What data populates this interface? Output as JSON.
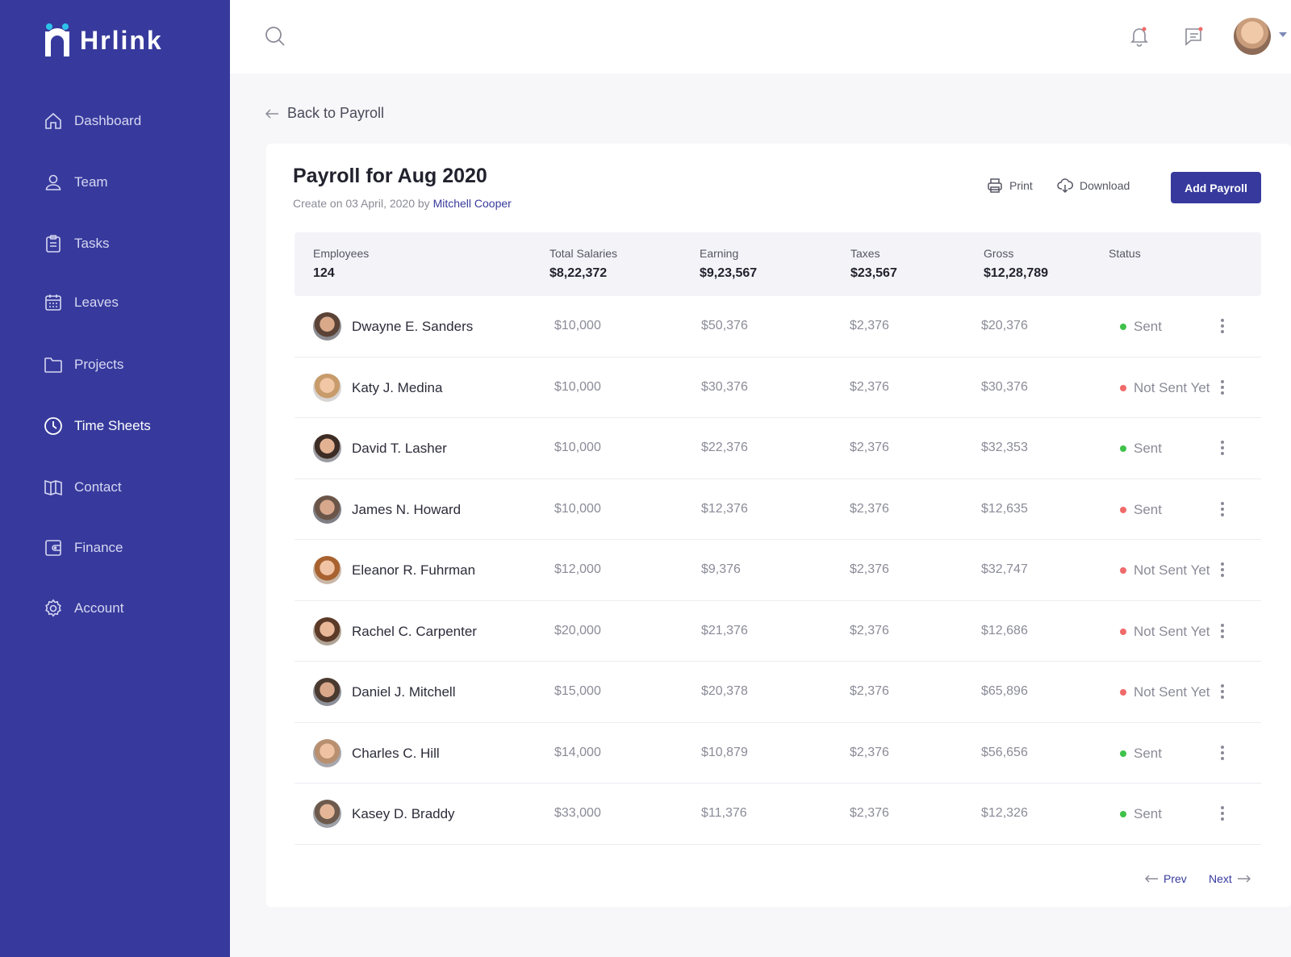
{
  "app": {
    "name": "Hrlink"
  },
  "sidebar": {
    "items": [
      {
        "label": "Dashboard",
        "icon": "home-icon"
      },
      {
        "label": "Team",
        "icon": "user-icon"
      },
      {
        "label": "Tasks",
        "icon": "clipboard-icon"
      },
      {
        "label": "Leaves",
        "icon": "calendar-icon"
      },
      {
        "label": "Projects",
        "icon": "folder-icon"
      },
      {
        "label": "Time Sheets",
        "icon": "clock-icon",
        "active": true
      },
      {
        "label": "Contact",
        "icon": "book-icon"
      },
      {
        "label": "Finance",
        "icon": "wallet-icon"
      },
      {
        "label": "Account",
        "icon": "gear-icon"
      }
    ]
  },
  "back": {
    "label": "Back to Payroll"
  },
  "page": {
    "title": "Payroll for Aug 2020",
    "created_prefix": "Create on 03 April, 2020 by",
    "created_by": "Mitchell Cooper"
  },
  "actions": {
    "print": "Print",
    "download": "Download",
    "add": "Add Payroll"
  },
  "summary": [
    {
      "label": "Employees",
      "value": "124"
    },
    {
      "label": "Total Salaries",
      "value": "$8,22,372"
    },
    {
      "label": "Earning",
      "value": "$9,23,567"
    },
    {
      "label": "Taxes",
      "value": "$23,567"
    },
    {
      "label": "Gross",
      "value": "$12,28,789"
    },
    {
      "label": "Status",
      "value": ""
    }
  ],
  "rows": [
    {
      "name": "Dwayne E. Sanders",
      "salary": "$10,000",
      "earning": "$50,376",
      "taxes": "$2,376",
      "gross": "$20,376",
      "status": "Sent",
      "status_color": "#3fc24a"
    },
    {
      "name": "Katy J. Medina",
      "salary": "$10,000",
      "earning": "$30,376",
      "taxes": "$2,376",
      "gross": "$30,376",
      "status": "Not Sent Yet",
      "status_color": "#f06a6a"
    },
    {
      "name": "David T. Lasher",
      "salary": "$10,000",
      "earning": "$22,376",
      "taxes": "$2,376",
      "gross": "$32,353",
      "status": "Sent",
      "status_color": "#3fc24a"
    },
    {
      "name": "James N. Howard",
      "salary": "$10,000",
      "earning": "$12,376",
      "taxes": "$2,376",
      "gross": "$12,635",
      "status": "Sent",
      "status_color": "#f06a6a"
    },
    {
      "name": "Eleanor R. Fuhrman",
      "salary": "$12,000",
      "earning": "$9,376",
      "taxes": "$2,376",
      "gross": "$32,747",
      "status": "Not Sent Yet",
      "status_color": "#f06a6a"
    },
    {
      "name": "Rachel C. Carpenter",
      "salary": "$20,000",
      "earning": "$21,376",
      "taxes": "$2,376",
      "gross": "$12,686",
      "status": "Not Sent Yet",
      "status_color": "#f06a6a"
    },
    {
      "name": "Daniel J. Mitchell",
      "salary": "$15,000",
      "earning": "$20,378",
      "taxes": "$2,376",
      "gross": "$65,896",
      "status": "Not Sent Yet",
      "status_color": "#f06a6a"
    },
    {
      "name": "Charles C. Hill",
      "salary": "$14,000",
      "earning": "$10,879",
      "taxes": "$2,376",
      "gross": "$56,656",
      "status": "Sent",
      "status_color": "#3fc24a"
    },
    {
      "name": "Kasey D. Braddy",
      "salary": "$33,000",
      "earning": "$11,376",
      "taxes": "$2,376",
      "gross": "$12,326",
      "status": "Sent",
      "status_color": "#3fc24a"
    }
  ],
  "pagination": {
    "prev": "Prev",
    "next": "Next"
  },
  "colors": {
    "brand": "#373a9c",
    "sent": "#3fc24a",
    "not_sent": "#f06a6a"
  }
}
